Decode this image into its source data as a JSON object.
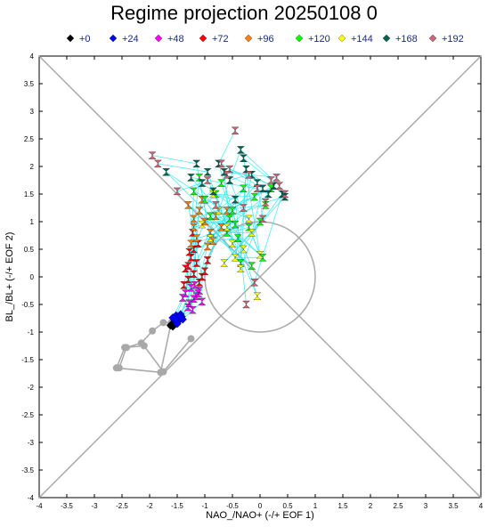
{
  "chart_data": {
    "type": "scatter",
    "title": "Regime projection 20250108 0",
    "xlabel": "NAO_/NAO+ (-/+ EOF 1)",
    "ylabel": "BL_/BL+ (-/+ EOF 2)",
    "xlim": [
      -4,
      4
    ],
    "ylim": [
      -4,
      4
    ],
    "x_ticks": [
      "-4",
      "-3.5",
      "-3",
      "-2.5",
      "-2",
      "-1.5",
      "-1",
      "-0.5",
      "0",
      "0.5",
      "1",
      "1.5",
      "2",
      "2.5",
      "3",
      "3.5",
      "4"
    ],
    "y_ticks": [
      "-4",
      "-3.5",
      "-3",
      "-2.5",
      "-2",
      "-1.5",
      "-1",
      "-0.5",
      "0",
      "0.5",
      "1",
      "1.5",
      "2",
      "2.5",
      "3",
      "3.5",
      "4"
    ],
    "grid": false,
    "legend_position": "top",
    "unit_circle": {
      "center": [
        0,
        0
      ],
      "radius": 1
    },
    "diagonals": true,
    "history_track": {
      "color": "#a8a8a8",
      "x": [
        -2.55,
        -2.42,
        -2.15,
        -1.95,
        -1.75,
        -1.6,
        -1.62,
        -1.8,
        -2.6,
        -2.45,
        -2.1,
        -1.75,
        -1.25
      ],
      "y": [
        -1.65,
        -1.28,
        -1.2,
        -0.98,
        -0.83,
        -0.82,
        -0.88,
        -1.73,
        -1.65,
        -1.28,
        -1.25,
        -1.72,
        -1.12
      ]
    },
    "series": [
      {
        "name": "+0",
        "color": "#000000",
        "marker": "diamond",
        "x": [
          -1.62,
          -1.58,
          -1.6
        ],
        "y": [
          -0.88,
          -0.9,
          -0.86
        ]
      },
      {
        "name": "+24",
        "color": "#0000ff",
        "marker": "diamond",
        "x": [
          -1.55,
          -1.5,
          -1.45,
          -1.42,
          -1.52,
          -1.48,
          -1.4,
          -1.58,
          -1.44,
          -1.5,
          -1.46,
          -1.53
        ],
        "y": [
          -0.78,
          -0.82,
          -0.75,
          -0.72,
          -0.7,
          -0.8,
          -0.77,
          -0.74,
          -0.68,
          -0.85,
          -0.73,
          -0.76
        ]
      },
      {
        "name": "+48",
        "color": "#ff00ff",
        "marker": "bowtie",
        "x": [
          -1.35,
          -1.2,
          -1.1,
          -1.3,
          -1.15,
          -1.25,
          -1.05,
          -1.4,
          -1.18,
          -1.28,
          -1.12,
          -1.22
        ],
        "y": [
          -0.3,
          -0.4,
          -0.25,
          -0.55,
          -0.35,
          -0.2,
          -0.45,
          -0.38,
          -0.15,
          -0.48,
          -0.3,
          -0.6
        ]
      },
      {
        "name": "+72",
        "color": "#ff0000",
        "marker": "bowtie",
        "x": [
          -1.3,
          -1.2,
          -1.1,
          -1.25,
          -1.35,
          -1.15,
          -1.05,
          -1.3,
          -1.2,
          -1.0,
          -1.38,
          -1.28,
          -1.12,
          -0.95,
          -1.22
        ],
        "y": [
          0.2,
          0.05,
          -0.1,
          0.35,
          0.15,
          0.25,
          0.0,
          -0.05,
          0.5,
          0.1,
          -0.15,
          0.45,
          0.6,
          0.3,
          0.8
        ]
      },
      {
        "name": "+96",
        "color": "#ff8000",
        "marker": "bowtie",
        "x": [
          -1.2,
          -1.1,
          -0.9,
          -1.25,
          -1.0,
          -0.8,
          -1.3,
          -0.95,
          -1.15,
          -0.7,
          -1.05,
          -0.85,
          -1.2,
          -0.6
        ],
        "y": [
          0.9,
          1.2,
          0.8,
          0.6,
          1.0,
          1.1,
          1.3,
          0.55,
          0.7,
          0.9,
          1.4,
          0.65,
          1.05,
          1.2
        ]
      },
      {
        "name": "+120",
        "color": "#00ff00",
        "marker": "bowtie",
        "x": [
          -1.1,
          -0.8,
          -0.5,
          -0.2,
          0.1,
          -0.9,
          -0.6,
          -0.3,
          0.0,
          -1.0,
          -0.7,
          -0.4,
          -0.1,
          0.2,
          -0.55,
          -0.35,
          -0.15,
          -1.2,
          -0.45,
          0.05
        ],
        "y": [
          1.8,
          1.5,
          1.2,
          0.9,
          1.3,
          1.1,
          0.8,
          1.6,
          1.0,
          1.4,
          1.7,
          0.7,
          1.45,
          1.6,
          1.05,
          0.25,
          0.2,
          1.55,
          0.95,
          0.35
        ]
      },
      {
        "name": "+144",
        "color": "#ffff00",
        "marker": "bowtie",
        "x": [
          -0.9,
          -0.6,
          -0.3,
          0.0,
          -0.75,
          -0.45,
          -0.15,
          -1.05,
          -0.65,
          -0.2,
          -0.05,
          -0.5,
          -0.85,
          -0.35
        ],
        "y": [
          0.7,
          0.9,
          0.5,
          0.4,
          1.2,
          0.35,
          0.8,
          0.95,
          0.25,
          1.05,
          -0.35,
          0.6,
          1.5,
          0.15
        ]
      },
      {
        "name": "+168",
        "color": "#006450",
        "marker": "bowtie",
        "x": [
          -1.15,
          -0.95,
          -0.75,
          -0.55,
          -0.35,
          -0.15,
          0.05,
          0.25,
          0.45,
          -1.05,
          -0.85,
          -0.65,
          -0.45,
          -0.25,
          -0.05,
          0.15,
          -1.7,
          -0.3,
          -1.25,
          0.4
        ],
        "y": [
          2.05,
          1.9,
          2.05,
          1.75,
          2.3,
          1.85,
          1.6,
          1.65,
          1.45,
          1.7,
          1.55,
          1.9,
          1.4,
          1.95,
          1.7,
          1.5,
          1.9,
          2.15,
          1.8,
          1.5
        ]
      },
      {
        "name": "+192",
        "color": "#cc6677",
        "marker": "bowtie",
        "x": [
          -1.95,
          -1.85,
          -0.45,
          -0.2,
          0.35,
          0.45,
          -0.7,
          -0.55,
          0.1,
          -1.5,
          -0.95,
          0.3,
          -0.25,
          -0.3,
          0.05,
          -0.6,
          -0.8,
          0.2,
          -0.05,
          -0.1
        ],
        "y": [
          2.2,
          2.05,
          2.65,
          1.85,
          1.65,
          1.5,
          2.05,
          1.95,
          1.35,
          1.55,
          1.75,
          1.8,
          -0.5,
          1.25,
          1.05,
          1.85,
          1.3,
          1.75,
          1.6,
          -0.1
        ]
      }
    ]
  }
}
